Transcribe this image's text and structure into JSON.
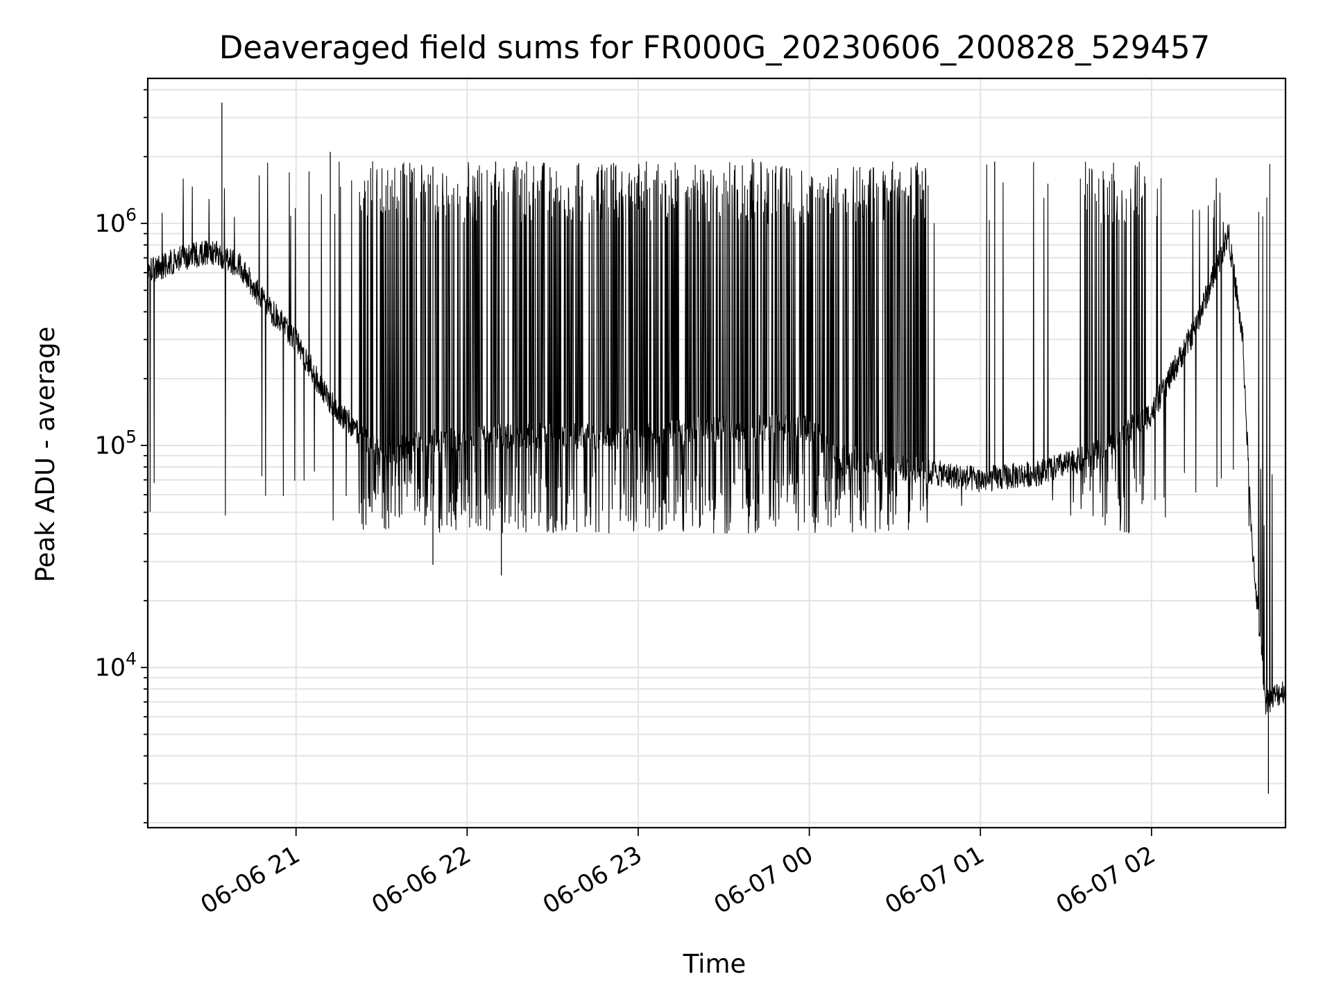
{
  "chart_data": {
    "type": "line",
    "title": "Deaveraged field sums for FR000G_20230606_200828_529457",
    "xlabel": "Time",
    "ylabel": "Peak ADU - average",
    "yscale": "log",
    "ylim": [
      1900,
      4500000
    ],
    "xlim": [
      "2023-06-06 20:08",
      "2023-06-07 02:47"
    ],
    "grid": true,
    "x_tick_labels": [
      "06-06 21",
      "06-06 22",
      "06-06 23",
      "06-07 00",
      "06-07 01",
      "06-07 02"
    ],
    "y_tick_labels": [
      {
        "base": "10",
        "exp": "4",
        "value": 10000
      },
      {
        "base": "10",
        "exp": "5",
        "value": 100000
      },
      {
        "base": "10",
        "exp": "6",
        "value": 1000000
      }
    ],
    "line_color": "#000000",
    "series": [
      {
        "x": [
          "2023-06-06 20:08",
          "2023-06-06 20:20",
          "2023-06-06 20:30",
          "2023-06-06 20:40",
          "2023-06-06 20:50",
          "2023-06-06 21:00",
          "2023-06-06 21:10",
          "2023-06-06 21:20",
          "2023-06-06 21:30",
          "2023-06-06 21:40",
          "2023-06-06 22:00",
          "2023-06-06 22:30",
          "2023-06-06 23:00",
          "2023-06-06 23:30",
          "2023-06-07 00:00",
          "2023-06-07 00:10",
          "2023-06-07 00:30",
          "2023-06-07 01:00",
          "2023-06-07 01:20",
          "2023-06-07 01:40",
          "2023-06-07 02:00",
          "2023-06-07 02:15",
          "2023-06-07 02:27",
          "2023-06-07 02:32",
          "2023-06-07 02:35",
          "2023-06-07 02:40",
          "2023-06-07 02:47"
        ],
        "y": [
          600000,
          700000,
          750000,
          650000,
          420000,
          300000,
          170000,
          120000,
          90000,
          100000,
          110000,
          110000,
          110000,
          120000,
          120000,
          90000,
          80000,
          70000,
          75000,
          90000,
          140000,
          330000,
          900000,
          300000,
          40000,
          7000,
          8000
        ],
        "spikes": [
          {
            "x": "2023-06-06 20:34",
            "y": 3500000
          },
          {
            "x": "2023-06-06 21:12",
            "y": 2100000
          },
          {
            "x": "2023-06-06 21:48",
            "y": 1800000
          },
          {
            "x": "2023-06-06 22:10",
            "y": 1900000
          },
          {
            "x": "2023-06-06 22:52",
            "y": 1800000
          },
          {
            "x": "2023-06-06 23:40",
            "y": 1950000
          },
          {
            "x": "2023-06-07 01:05",
            "y": 1900000
          },
          {
            "x": "2023-06-07 01:55",
            "y": 1800000
          },
          {
            "x": "2023-06-06 22:12",
            "y": 26000
          },
          {
            "x": "2023-06-06 21:48",
            "y": 29000
          },
          {
            "x": "2023-06-07 02:41",
            "y": 2700
          }
        ]
      }
    ]
  }
}
